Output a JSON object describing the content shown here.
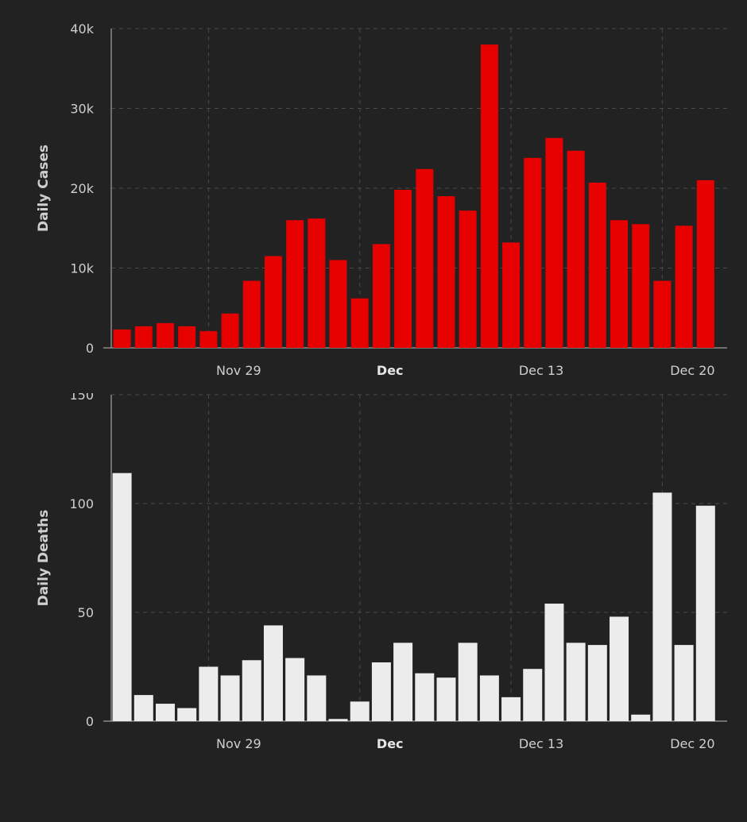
{
  "colors": {
    "background": "#222222",
    "cases_bar": "#e60000",
    "deaths_bar": "#ececec",
    "grid": "#4a4a4a",
    "axis": "#8a8a8a",
    "text": "#cfcfcf"
  },
  "chart_data": [
    {
      "type": "bar",
      "ylabel": "Daily Cases",
      "ylim": [
        0,
        40000
      ],
      "yticks": [
        0,
        10000,
        20000,
        30000,
        40000
      ],
      "ytick_labels": [
        "0",
        "10k",
        "20k",
        "30k",
        "40k"
      ],
      "xlim": [
        0,
        28.5
      ],
      "xticks": [
        {
          "label": "Nov 29",
          "pos": 4.5,
          "bold": false
        },
        {
          "label": "Dec",
          "pos": 11.5,
          "bold": true
        },
        {
          "label": "Dec 13",
          "pos": 18.5,
          "bold": false
        },
        {
          "label": "Dec 20",
          "pos": 25.5,
          "bold": false
        }
      ],
      "values": [
        2300,
        2700,
        3100,
        2700,
        2100,
        4300,
        8400,
        11500,
        16000,
        16200,
        11000,
        6200,
        13000,
        19800,
        22400,
        19000,
        17200,
        38000,
        13200,
        23800,
        26300,
        24700,
        20700,
        16000,
        15500,
        8400,
        15300,
        21000
      ]
    },
    {
      "type": "bar",
      "ylabel": "Daily Deaths",
      "ylim": [
        0,
        150
      ],
      "yticks": [
        0,
        50,
        100,
        150
      ],
      "ytick_labels": [
        "0",
        "50",
        "100",
        "150"
      ],
      "xlim": [
        0,
        28.5
      ],
      "xticks": [
        {
          "label": "Nov 29",
          "pos": 4.5,
          "bold": false
        },
        {
          "label": "Dec",
          "pos": 11.5,
          "bold": true
        },
        {
          "label": "Dec 13",
          "pos": 18.5,
          "bold": false
        },
        {
          "label": "Dec 20",
          "pos": 25.5,
          "bold": false
        }
      ],
      "values": [
        114,
        12,
        8,
        6,
        25,
        21,
        28,
        44,
        29,
        21,
        1,
        9,
        27,
        36,
        22,
        20,
        36,
        21,
        11,
        24,
        54,
        36,
        35,
        48,
        3,
        105,
        35,
        99
      ]
    }
  ]
}
